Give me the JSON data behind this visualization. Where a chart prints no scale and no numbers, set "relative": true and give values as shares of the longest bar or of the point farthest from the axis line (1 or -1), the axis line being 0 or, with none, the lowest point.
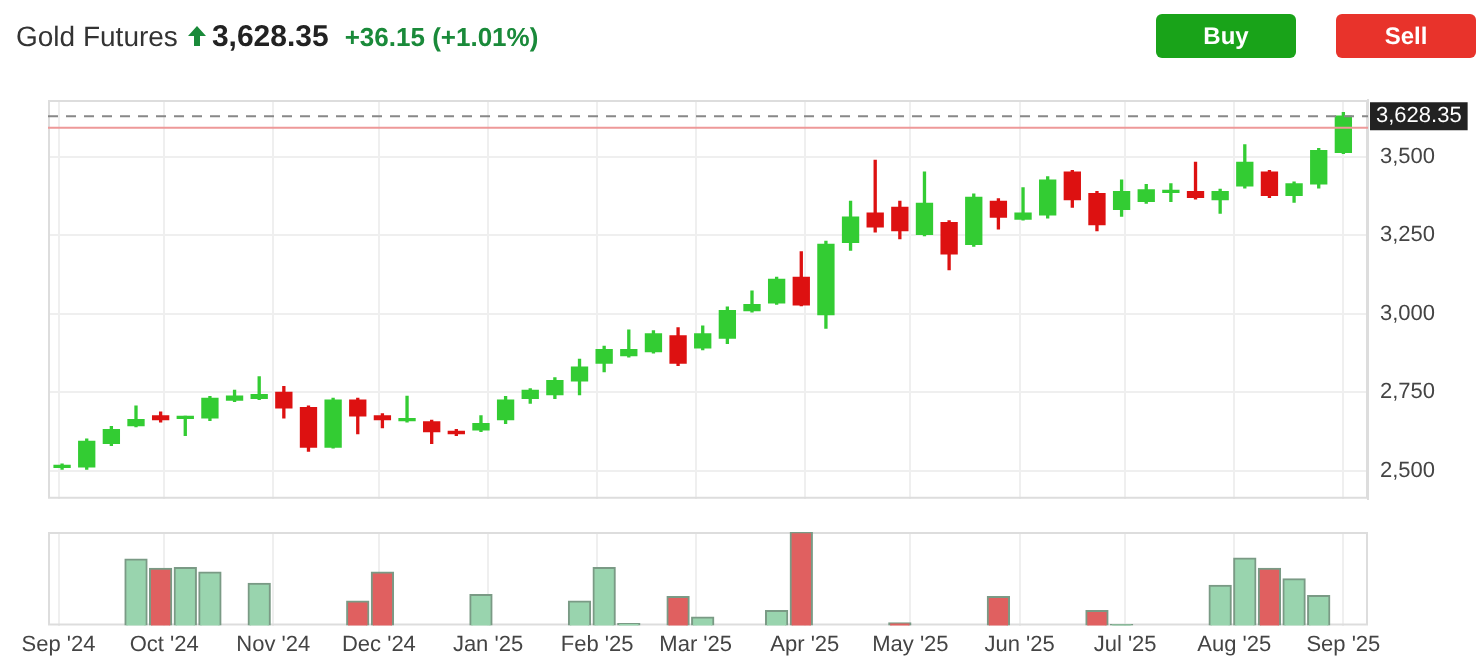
{
  "chart_data": [
    {
      "type": "candlestick",
      "title": "Gold Futures",
      "annotations": [
        "3,628.35",
        "+36.15 (+1.01%)",
        "Buy",
        "Sell"
      ],
      "x": [
        "2024-09-02",
        "2024-09-09",
        "2024-09-16",
        "2024-09-23",
        "2024-09-30",
        "2024-10-07",
        "2024-10-14",
        "2024-10-21",
        "2024-10-28",
        "2024-11-04",
        "2024-11-11",
        "2024-11-18",
        "2024-11-25",
        "2024-12-02",
        "2024-12-09",
        "2024-12-16",
        "2024-12-23",
        "2024-12-30",
        "2025-01-06",
        "2025-01-13",
        "2025-01-20",
        "2025-01-27",
        "2025-02-03",
        "2025-02-10",
        "2025-02-17",
        "2025-02-24",
        "2025-03-03",
        "2025-03-10",
        "2025-03-17",
        "2025-03-24",
        "2025-03-31",
        "2025-04-07",
        "2025-04-14",
        "2025-04-21",
        "2025-04-28",
        "2025-05-05",
        "2025-05-12",
        "2025-05-19",
        "2025-05-26",
        "2025-06-02",
        "2025-06-09",
        "2025-06-16",
        "2025-06-23",
        "2025-06-30",
        "2025-07-07",
        "2025-07-14",
        "2025-07-21",
        "2025-07-28",
        "2025-08-04",
        "2025-08-11",
        "2025-08-18",
        "2025-08-25",
        "2025-09-01"
      ],
      "ohlc": [
        [
          2510,
          2520,
          2505,
          2516
        ],
        [
          2512,
          2600,
          2505,
          2593
        ],
        [
          2587,
          2640,
          2580,
          2630
        ],
        [
          2643,
          2705,
          2640,
          2662
        ],
        [
          2674,
          2686,
          2655,
          2662
        ],
        [
          2666,
          2672,
          2612,
          2670
        ],
        [
          2668,
          2735,
          2660,
          2730
        ],
        [
          2724,
          2755,
          2720,
          2737
        ],
        [
          2730,
          2798,
          2727,
          2742
        ],
        [
          2749,
          2767,
          2668,
          2700
        ],
        [
          2700,
          2705,
          2562,
          2575
        ],
        [
          2575,
          2730,
          2572,
          2724
        ],
        [
          2724,
          2730,
          2618,
          2674
        ],
        [
          2674,
          2680,
          2637,
          2662
        ],
        [
          2659,
          2736,
          2655,
          2665
        ],
        [
          2655,
          2660,
          2587,
          2624
        ],
        [
          2624,
          2630,
          2612,
          2618
        ],
        [
          2630,
          2674,
          2625,
          2649
        ],
        [
          2662,
          2735,
          2650,
          2724
        ],
        [
          2730,
          2760,
          2715,
          2755
        ],
        [
          2742,
          2795,
          2730,
          2786
        ],
        [
          2786,
          2854,
          2742,
          2829
        ],
        [
          2842,
          2895,
          2815,
          2885
        ],
        [
          2866,
          2947,
          2862,
          2885
        ],
        [
          2879,
          2945,
          2875,
          2935
        ],
        [
          2929,
          2954,
          2835,
          2842
        ],
        [
          2891,
          2960,
          2885,
          2935
        ],
        [
          2922,
          3020,
          2905,
          3009
        ],
        [
          3009,
          3071,
          3005,
          3028
        ],
        [
          3034,
          3115,
          3030,
          3109
        ],
        [
          3115,
          3196,
          3025,
          3028
        ],
        [
          2997,
          3230,
          2954,
          3220
        ],
        [
          3227,
          3357,
          3202,
          3307
        ],
        [
          3320,
          3488,
          3260,
          3276
        ],
        [
          3338,
          3357,
          3239,
          3264
        ],
        [
          3252,
          3450,
          3248,
          3351
        ],
        [
          3289,
          3295,
          3140,
          3190
        ],
        [
          3220,
          3380,
          3215,
          3370
        ],
        [
          3357,
          3365,
          3270,
          3307
        ],
        [
          3301,
          3400,
          3298,
          3320
        ],
        [
          3314,
          3435,
          3305,
          3425
        ],
        [
          3450,
          3455,
          3339,
          3363
        ],
        [
          3382,
          3388,
          3264,
          3283
        ],
        [
          3332,
          3425,
          3310,
          3388
        ],
        [
          3357,
          3410,
          3352,
          3394
        ],
        [
          3386,
          3413,
          3357,
          3392
        ],
        [
          3388,
          3481,
          3365,
          3370
        ],
        [
          3363,
          3395,
          3320,
          3388
        ],
        [
          3407,
          3537,
          3400,
          3481
        ],
        [
          3450,
          3455,
          3370,
          3376
        ],
        [
          3376,
          3418,
          3355,
          3413
        ],
        [
          3413,
          3525,
          3400,
          3519
        ],
        [
          3513,
          3640,
          3510,
          3628.35
        ]
      ],
      "colors": [
        "#33cc33",
        "#33cc33",
        "#33cc33",
        "#33cc33",
        "#dd1111",
        "#33cc33",
        "#33cc33",
        "#33cc33",
        "#33cc33",
        "#dd1111",
        "#dd1111",
        "#33cc33",
        "#dd1111",
        "#dd1111",
        "#33cc33",
        "#dd1111",
        "#dd1111",
        "#33cc33",
        "#33cc33",
        "#33cc33",
        "#33cc33",
        "#33cc33",
        "#33cc33",
        "#33cc33",
        "#33cc33",
        "#dd1111",
        "#33cc33",
        "#33cc33",
        "#33cc33",
        "#33cc33",
        "#dd1111",
        "#33cc33",
        "#33cc33",
        "#dd1111",
        "#dd1111",
        "#33cc33",
        "#dd1111",
        "#33cc33",
        "#dd1111",
        "#33cc33",
        "#33cc33",
        "#dd1111",
        "#dd1111",
        "#33cc33",
        "#33cc33",
        "#33cc33",
        "#dd1111",
        "#33cc33",
        "#33cc33",
        "#dd1111",
        "#33cc33",
        "#33cc33",
        "#33cc33"
      ],
      "xlim": [
        "2024-08-29",
        "2025-09-08"
      ],
      "xticks": [
        {
          "value": "2024-09-01",
          "label": null
        },
        {
          "value": "2024-10-01",
          "label": null
        },
        {
          "value": "2024-11-01",
          "label": null
        },
        {
          "value": "2024-12-01",
          "label": null
        },
        {
          "value": "2025-01-01",
          "label": null
        },
        {
          "value": "2025-02-01",
          "label": null
        },
        {
          "value": "2025-03-01",
          "label": null
        },
        {
          "value": "2025-04-01",
          "label": null
        },
        {
          "value": "2025-05-01",
          "label": null
        },
        {
          "value": "2025-06-01",
          "label": null
        },
        {
          "value": "2025-07-01",
          "label": null
        },
        {
          "value": "2025-08-01",
          "label": null
        },
        {
          "value": "2025-09-01",
          "label": null
        }
      ],
      "ylim": [
        2410,
        3680
      ],
      "yticks": [
        {
          "value": 2500,
          "label": "2,500"
        },
        {
          "value": 2750,
          "label": "2,750"
        },
        {
          "value": 3000,
          "label": "3,000"
        },
        {
          "value": 3250,
          "label": "3,250"
        },
        {
          "value": 3500,
          "label": "3,500"
        }
      ],
      "grid": true,
      "tick_labels": "y",
      "ref_lines": [
        {
          "axis": "y",
          "value": 3628.35,
          "label": "3,628.35",
          "color": "#888888",
          "line_style": "dashed"
        },
        {
          "axis": "y",
          "value": 3592,
          "color": "#ee9999",
          "line_style": "solid"
        }
      ]
    },
    {
      "type": "bar",
      "relative": true,
      "x": [
        "2024-09-23",
        "2024-09-30",
        "2024-10-07",
        "2024-10-14",
        "2024-10-28",
        "2024-11-25",
        "2024-12-02",
        "2024-12-30",
        "2025-01-27",
        "2025-02-03",
        "2025-02-10",
        "2025-02-24",
        "2025-03-03",
        "2025-03-24",
        "2025-03-31",
        "2025-04-28",
        "2025-05-26",
        "2025-06-23",
        "2025-06-30",
        "2025-07-28",
        "2025-08-04",
        "2025-08-11",
        "2025-08-18",
        "2025-08-25"
      ],
      "values": [
        0.71,
        0.61,
        0.62,
        0.57,
        0.45,
        0.26,
        0.57,
        0.33,
        0.26,
        0.62,
        0.02,
        0.31,
        0.09,
        0.16,
        1,
        0.03,
        0.31,
        0.16,
        0.01,
        0.43,
        0.72,
        0.61,
        0.5,
        0.32
      ],
      "colors": [
        "#99d4ae",
        "#e06060",
        "#99d4ae",
        "#99d4ae",
        "#99d4ae",
        "#e06060",
        "#e06060",
        "#99d4ae",
        "#99d4ae",
        "#99d4ae",
        "#99d4ae",
        "#e06060",
        "#99d4ae",
        "#99d4ae",
        "#e06060",
        "#e06060",
        "#e06060",
        "#e06060",
        "#99d4ae",
        "#99d4ae",
        "#99d4ae",
        "#e06060",
        "#99d4ae",
        "#99d4ae"
      ],
      "xlim": [
        "2024-08-29",
        "2025-09-08"
      ],
      "xticks": [
        {
          "value": "2024-09-01",
          "label": "Sep '24"
        },
        {
          "value": "2024-10-01",
          "label": "Oct '24"
        },
        {
          "value": "2024-11-01",
          "label": "Nov '24"
        },
        {
          "value": "2024-12-01",
          "label": "Dec '24"
        },
        {
          "value": "2025-01-01",
          "label": "Jan '25"
        },
        {
          "value": "2025-02-01",
          "label": "Feb '25"
        },
        {
          "value": "2025-03-01",
          "label": "Mar '25"
        },
        {
          "value": "2025-04-01",
          "label": "Apr '25"
        },
        {
          "value": "2025-05-01",
          "label": "May '25"
        },
        {
          "value": "2025-06-01",
          "label": "Jun '25"
        },
        {
          "value": "2025-07-01",
          "label": "Jul '25"
        },
        {
          "value": "2025-08-01",
          "label": "Aug '25"
        },
        {
          "value": "2025-09-01",
          "label": "Sep '25"
        }
      ],
      "grid": true,
      "tick_labels": "x"
    }
  ]
}
